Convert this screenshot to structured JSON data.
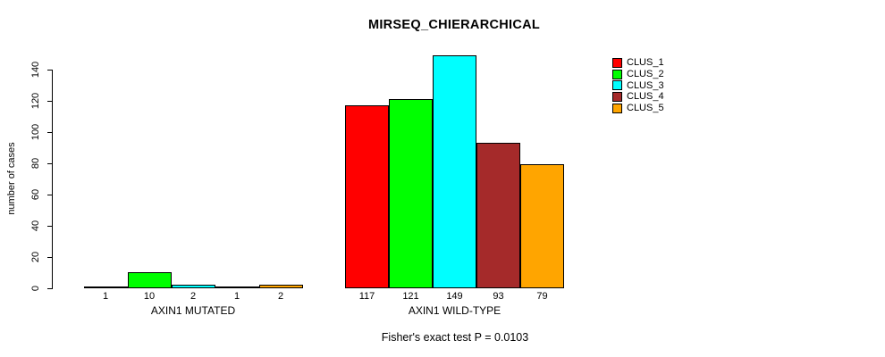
{
  "title": "MIRSEQ_CHIERARCHICAL",
  "caption": "Fisher's exact test P = 0.0103",
  "chart_data": {
    "type": "bar",
    "title": "MIRSEQ_CHIERARCHICAL",
    "xlabel": "",
    "ylabel": "number of cases",
    "ylim": [
      0,
      140
    ],
    "yticks": [
      0,
      20,
      40,
      60,
      80,
      100,
      120,
      140
    ],
    "grid": false,
    "legend_position": "right",
    "groups": [
      "AXIN1 MUTATED",
      "AXIN1 WILD-TYPE"
    ],
    "series": [
      {
        "name": "CLUS_1",
        "color": "#FF0000",
        "values": [
          1,
          117
        ]
      },
      {
        "name": "CLUS_2",
        "color": "#00FF00",
        "values": [
          10,
          121
        ]
      },
      {
        "name": "CLUS_3",
        "color": "#00FFFF",
        "values": [
          2,
          149
        ]
      },
      {
        "name": "CLUS_4",
        "color": "#A52A2A",
        "values": [
          1,
          93
        ]
      },
      {
        "name": "CLUS_5",
        "color": "#FFA500",
        "values": [
          2,
          79
        ]
      }
    ],
    "bar_value_labels": {
      "AXIN1 MUTATED": [
        1,
        10,
        2,
        1,
        2
      ],
      "AXIN1 WILD-TYPE": [
        117,
        121,
        149,
        93,
        79
      ]
    },
    "annotation": "Fisher's exact test P = 0.0103"
  }
}
